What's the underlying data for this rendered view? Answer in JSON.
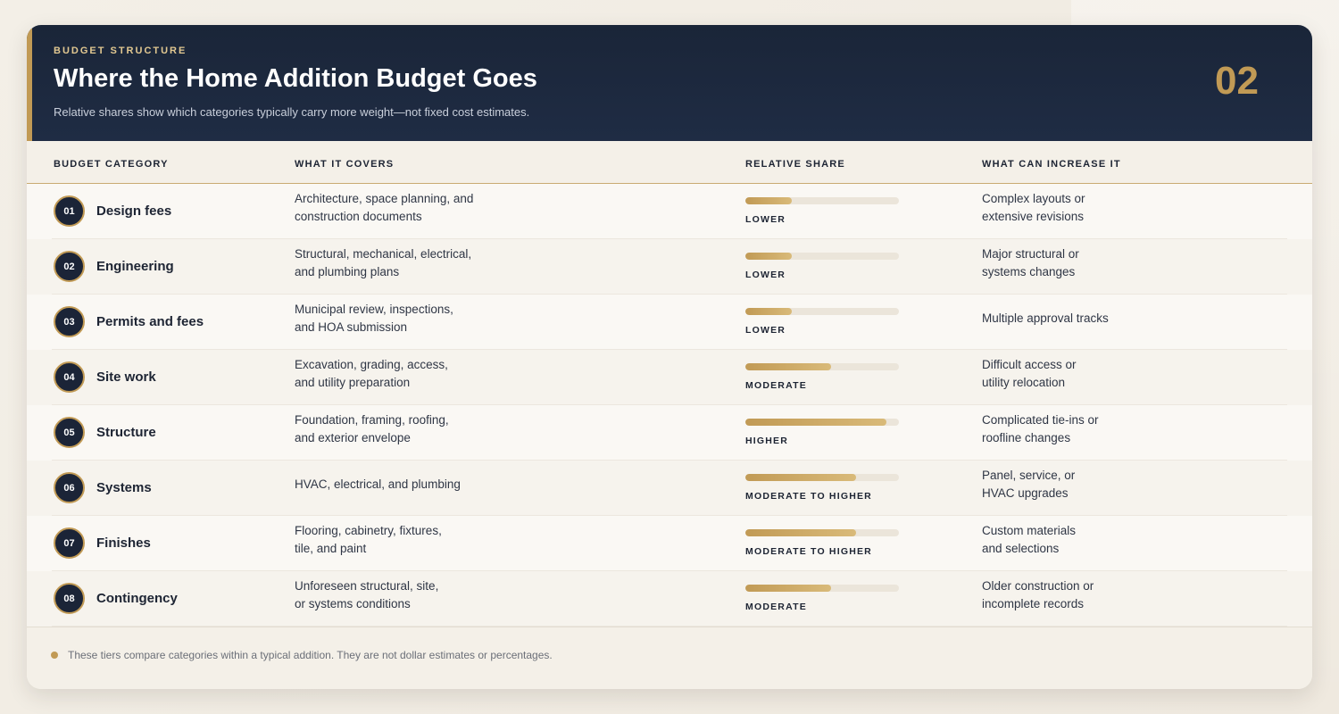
{
  "header": {
    "eyebrow": "BUDGET STRUCTURE",
    "title": "Where the Home Addition Budget Goes",
    "subtitle": "Relative shares show which categories typically carry more weight—not fixed cost estimates.",
    "page_number": "02"
  },
  "columns": {
    "category": "BUDGET CATEGORY",
    "covers": "WHAT IT COVERS",
    "share": "RELATIVE SHARE",
    "increase": "WHAT CAN INCREASE IT"
  },
  "rows": [
    {
      "num": "01",
      "name": "Design fees",
      "covers_1": "Architecture, space planning, and",
      "covers_2": "construction documents",
      "share_label": "LOWER",
      "share_level": 0.3,
      "increase_1": "Complex layouts or",
      "increase_2": "extensive revisions"
    },
    {
      "num": "02",
      "name": "Engineering",
      "covers_1": "Structural, mechanical, electrical,",
      "covers_2": "and plumbing plans",
      "share_label": "LOWER",
      "share_level": 0.3,
      "increase_1": "Major structural or",
      "increase_2": "systems changes"
    },
    {
      "num": "03",
      "name": "Permits and fees",
      "covers_1": "Municipal review, inspections,",
      "covers_2": "and HOA submission",
      "share_label": "LOWER",
      "share_level": 0.3,
      "increase_1": "Multiple approval tracks",
      "increase_2": ""
    },
    {
      "num": "04",
      "name": "Site work",
      "covers_1": "Excavation, grading, access,",
      "covers_2": "and utility preparation",
      "share_label": "MODERATE",
      "share_level": 0.56,
      "increase_1": "Difficult access or",
      "increase_2": "utility relocation"
    },
    {
      "num": "05",
      "name": "Structure",
      "covers_1": "Foundation, framing, roofing,",
      "covers_2": "and exterior envelope",
      "share_label": "HIGHER",
      "share_level": 0.92,
      "increase_1": "Complicated tie-ins or",
      "increase_2": "roofline changes"
    },
    {
      "num": "06",
      "name": "Systems",
      "covers_1": "HVAC, electrical, and plumbing",
      "covers_2": "",
      "share_label": "MODERATE TO HIGHER",
      "share_level": 0.72,
      "increase_1": "Panel, service, or",
      "increase_2": "HVAC upgrades"
    },
    {
      "num": "07",
      "name": "Finishes",
      "covers_1": "Flooring, cabinetry, fixtures,",
      "covers_2": "tile, and paint",
      "share_label": "MODERATE TO HIGHER",
      "share_level": 0.72,
      "increase_1": "Custom materials",
      "increase_2": "and selections"
    },
    {
      "num": "08",
      "name": "Contingency",
      "covers_1": "Unforeseen structural, site,",
      "covers_2": "or systems conditions",
      "share_label": "MODERATE",
      "share_level": 0.56,
      "increase_1": "Older construction or",
      "increase_2": "incomplete records"
    }
  ],
  "footer": {
    "note": "These tiers compare categories within a typical addition. They are not dollar estimates or percentages."
  },
  "colors": {
    "header_bg": "#1b2437",
    "accent_gold": "#c19a55",
    "track": "#ebe5da"
  }
}
